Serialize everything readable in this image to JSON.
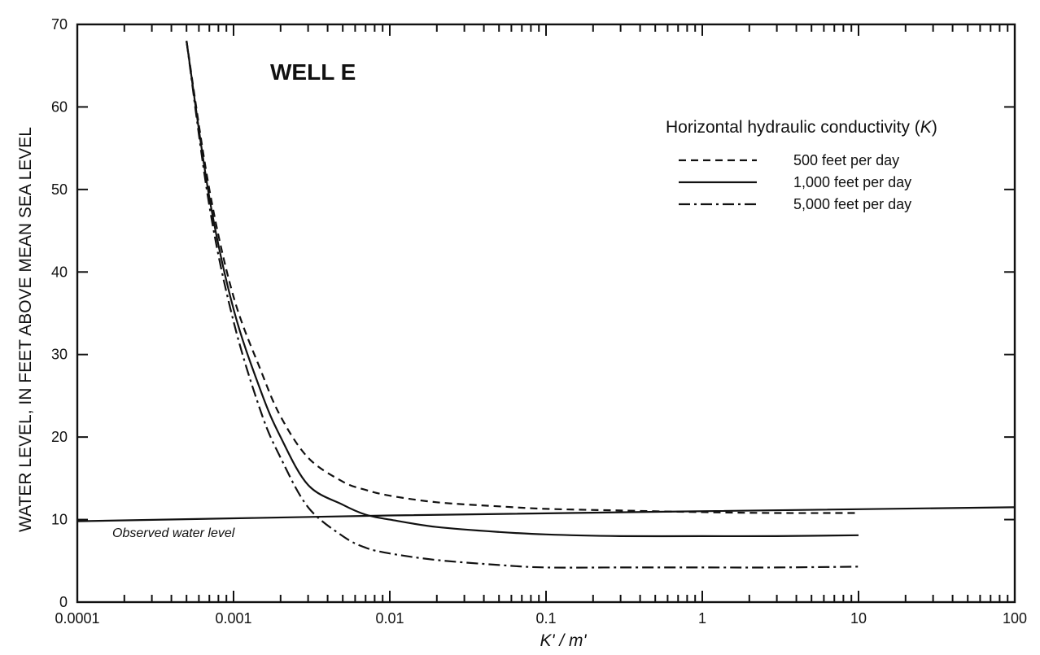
{
  "chart_data": {
    "type": "line",
    "title": "WELL E",
    "xlabel": "K' / m'",
    "ylabel": "WATER LEVEL, IN FEET ABOVE MEAN SEA LEVEL",
    "xscale": "log",
    "xlim": [
      0.0001,
      100
    ],
    "ylim": [
      0,
      70
    ],
    "xticks": [
      {
        "value": 0.0001,
        "label": "0.0001"
      },
      {
        "value": 0.001,
        "label": "0.001"
      },
      {
        "value": 0.01,
        "label": "0.01"
      },
      {
        "value": 0.1,
        "label": "0.1"
      },
      {
        "value": 1,
        "label": "1"
      },
      {
        "value": 10,
        "label": "10"
      },
      {
        "value": 100,
        "label": "100"
      }
    ],
    "yticks": [
      {
        "value": 0,
        "label": "0"
      },
      {
        "value": 10,
        "label": "10"
      },
      {
        "value": 20,
        "label": "20"
      },
      {
        "value": 30,
        "label": "30"
      },
      {
        "value": 40,
        "label": "40"
      },
      {
        "value": 50,
        "label": "50"
      },
      {
        "value": 60,
        "label": "60"
      },
      {
        "value": 70,
        "label": "70"
      }
    ],
    "grid": false,
    "legend": {
      "title_prefix": "Horizontal hydraulic conductivity (",
      "title_symbol": "K",
      "title_suffix": ")",
      "position": "top-right"
    },
    "series": [
      {
        "name": "500 feet per day",
        "dash": "dashed",
        "x": [
          0.0005,
          0.0007,
          0.001,
          0.0015,
          0.002,
          0.003,
          0.005,
          0.007,
          0.01,
          0.02,
          0.05,
          0.1,
          0.3,
          1,
          3,
          10
        ],
        "y": [
          68,
          50,
          37,
          28,
          22.5,
          17.5,
          14.6,
          13.6,
          12.9,
          12.1,
          11.6,
          11.3,
          11.1,
          10.9,
          10.8,
          10.8
        ]
      },
      {
        "name": "1,000 feet per day",
        "dash": "solid",
        "x": [
          0.0005,
          0.0007,
          0.001,
          0.0015,
          0.002,
          0.003,
          0.005,
          0.007,
          0.01,
          0.02,
          0.05,
          0.1,
          0.3,
          1,
          3,
          10
        ],
        "y": [
          68,
          49,
          35.5,
          25.5,
          20,
          14.2,
          11.8,
          10.6,
          10.0,
          9.1,
          8.5,
          8.2,
          8.0,
          8.0,
          8.0,
          8.1
        ]
      },
      {
        "name": "5,000 feet per day",
        "dash": "dashdot",
        "x": [
          0.0005,
          0.0007,
          0.001,
          0.0015,
          0.002,
          0.003,
          0.005,
          0.007,
          0.01,
          0.02,
          0.05,
          0.1,
          0.3,
          1,
          3,
          10
        ],
        "y": [
          68,
          48,
          34,
          23,
          17.5,
          11.5,
          8.0,
          6.6,
          5.9,
          5.1,
          4.5,
          4.2,
          4.2,
          4.2,
          4.2,
          4.3
        ]
      }
    ],
    "reference_line": {
      "label": "Observed water level",
      "x": [
        0.0001,
        0.01,
        100
      ],
      "y": [
        9.8,
        10.5,
        11.5
      ]
    }
  }
}
